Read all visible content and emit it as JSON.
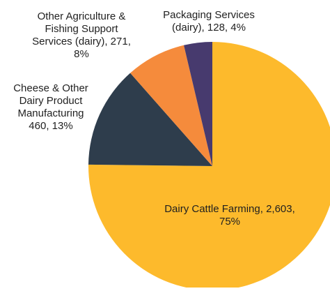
{
  "chart_data": {
    "type": "pie",
    "title": "",
    "slices": [
      {
        "label_lines": [
          "Dairy Cattle Farming, 2,603,",
          "75%"
        ],
        "category": "Dairy Cattle Farming",
        "value": 2603,
        "percent": 75,
        "color": "#FDBA2C"
      },
      {
        "label_lines": [
          "Cheese & Other",
          "Dairy Product",
          "Manufacturing",
          "460, 13%"
        ],
        "category": "Cheese & Other Dairy Product Manufacturing",
        "value": 460,
        "percent": 13,
        "color": "#2E3D4C"
      },
      {
        "label_lines": [
          "Other Agriculture &",
          "Fishing Support",
          "Services (dairy), 271,",
          "8%"
        ],
        "category": "Other Agriculture & Fishing Support Services (dairy)",
        "value": 271,
        "percent": 8,
        "color": "#F58B3C"
      },
      {
        "label_lines": [
          "Packaging Services",
          "(dairy), 128, 4%"
        ],
        "category": "Packaging Services (dairy)",
        "value": 128,
        "percent": 4,
        "color": "#473A6E"
      }
    ],
    "start_angle_deg": 0,
    "direction": "clockwise",
    "legend": "none",
    "data_labels": "outside"
  }
}
